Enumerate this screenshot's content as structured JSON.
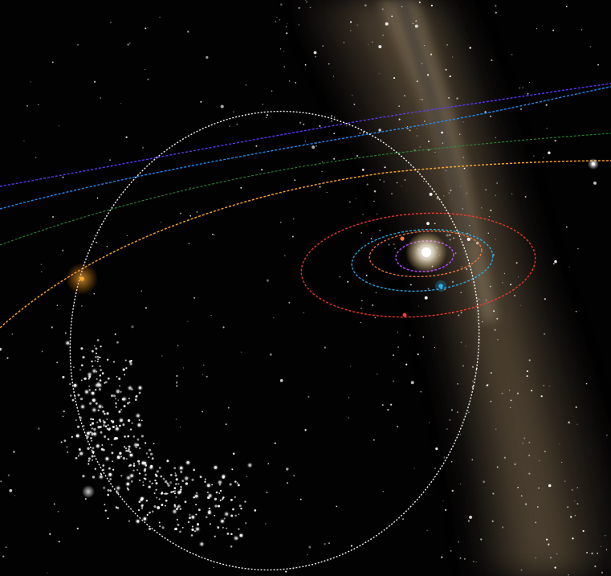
{
  "view": {
    "background": "#020203",
    "milky_way_colors": [
      "#3a3226",
      "#6b5a42",
      "#8a7a62",
      "#2a2a2c"
    ]
  },
  "orbits": [
    {
      "name": "mercury-orbit",
      "color": "#b84cff"
    },
    {
      "name": "venus-orbit",
      "color": "#ff7a3c"
    },
    {
      "name": "earth-orbit",
      "color": "#29b6f6"
    },
    {
      "name": "mars-orbit",
      "color": "#ff3b30"
    },
    {
      "name": "jupiter-orbit",
      "color": "#ffa726"
    },
    {
      "name": "saturn-orbit",
      "color": "#2e8b3a"
    },
    {
      "name": "uranus-orbit",
      "color": "#1e90ff"
    },
    {
      "name": "neptune-orbit",
      "color": "#5b3cff"
    },
    {
      "name": "comet-orbit",
      "color": "#ffffff"
    }
  ],
  "bodies": [
    {
      "name": "sun-marker",
      "color": "#ffffff"
    },
    {
      "name": "venus-marker",
      "color": "#ff7a3c"
    },
    {
      "name": "earth-marker",
      "color": "#29b6f6"
    },
    {
      "name": "mars-marker",
      "color": "#ff3b30"
    },
    {
      "name": "jupiter-marker",
      "color": "#ffa726"
    },
    {
      "name": "bright-star-marker",
      "color": "#ffffff"
    }
  ],
  "cluster": {
    "name": "trojan-asteroid-cluster",
    "color": "#ffffff"
  }
}
